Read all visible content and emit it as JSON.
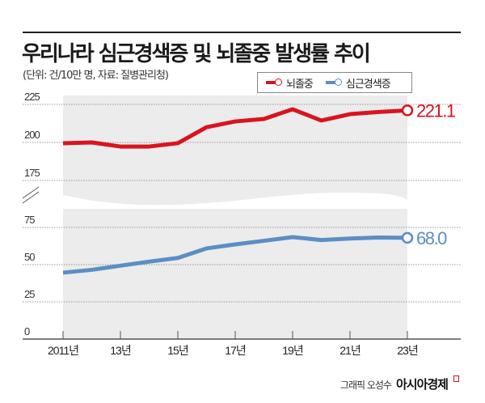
{
  "header": {
    "title": "우리나라 심근경색증 및 뇌졸중 발생률 추이",
    "subtitle": "(단위: 건/10만 명, 자료: 질병관리청)"
  },
  "colors": {
    "stroke": "#d9141e",
    "mi": "#5b8ec4",
    "band": "#ececec"
  },
  "chart_data": {
    "type": "line",
    "title": "우리나라 심근경색증 및 뇌졸중 발생률 추이",
    "ylabel": "건/10만 명",
    "x": [
      2011,
      2012,
      2013,
      2014,
      2015,
      2016,
      2017,
      2018,
      2019,
      2020,
      2021,
      2022,
      2023
    ],
    "x_tick_labels": [
      "2011년",
      "13년",
      "15년",
      "17년",
      "19년",
      "21년",
      "23년"
    ],
    "y_ticks_upper": [
      "175",
      "200",
      "225"
    ],
    "y_ticks_lower": [
      "0",
      "25",
      "50",
      "75"
    ],
    "axis_break": "between 75 and 175",
    "grid": "horizontal dotted",
    "legend_position": "top-right",
    "series": [
      {
        "name": "뇌졸중",
        "color": "#d9141e",
        "values": [
          199.5,
          200,
          197.3,
          197.3,
          199.5,
          210,
          213.8,
          215.4,
          221.8,
          214.4,
          218.6,
          220,
          221.1
        ],
        "end_label": "221.1"
      },
      {
        "name": "심근경색증",
        "color": "#5b8ec4",
        "values": [
          44.6,
          46.5,
          49.3,
          52,
          54.5,
          60.9,
          63.6,
          66,
          68.5,
          66.5,
          67.5,
          68.2,
          68.0
        ],
        "end_label": "68.0"
      }
    ]
  },
  "credit": {
    "byline": "그래픽 오성수",
    "brand": "아시아경제"
  }
}
